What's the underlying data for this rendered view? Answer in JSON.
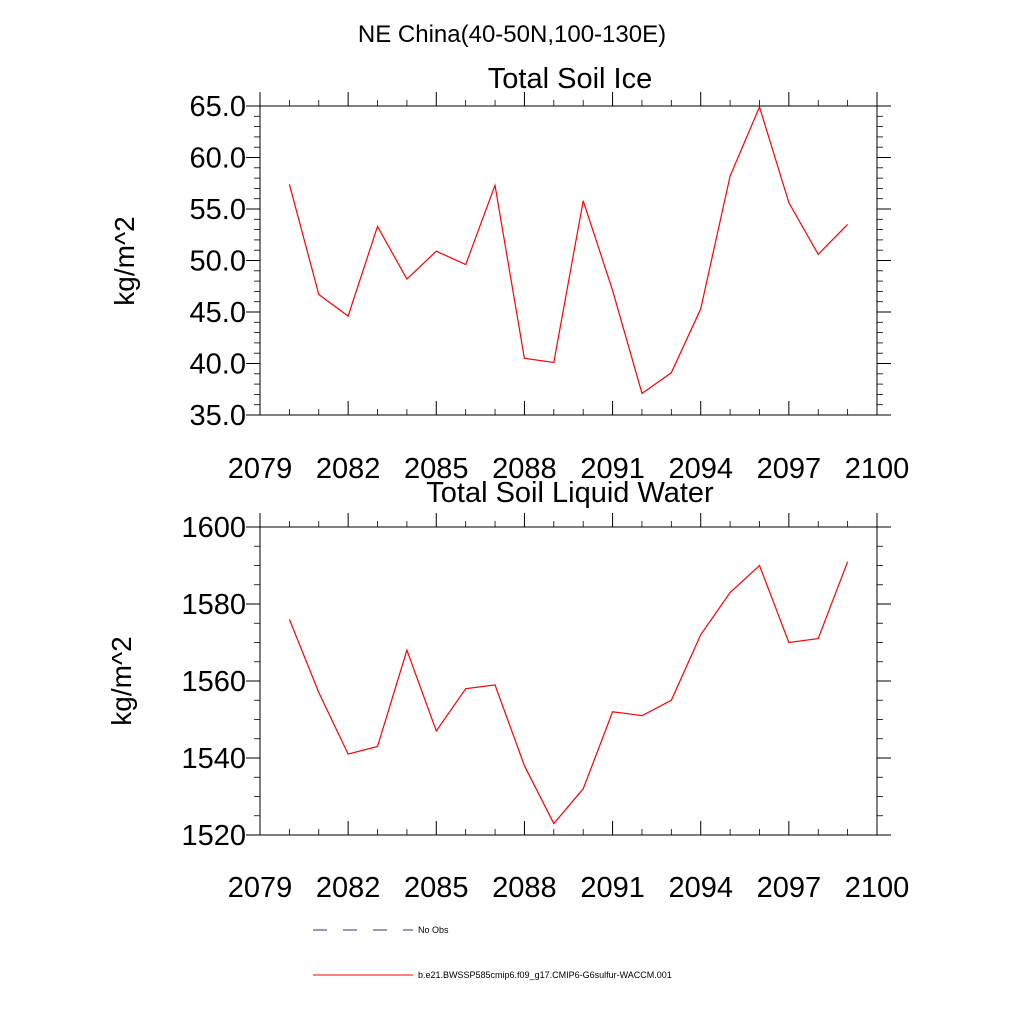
{
  "figure": {
    "suptitle": "NE China(40-50N,100-130E)"
  },
  "chart_data": [
    {
      "type": "line",
      "title": "Total Soil Ice",
      "xlabel": "",
      "ylabel": "kg/m^2",
      "xlim": [
        2079,
        2100
      ],
      "ylim": [
        35.0,
        65.0
      ],
      "x_ticks": [
        "2079",
        "2082",
        "2085",
        "2088",
        "2091",
        "2094",
        "2097",
        "2100"
      ],
      "y_ticks": [
        "35.0",
        "40.0",
        "45.0",
        "50.0",
        "55.0",
        "60.0",
        "65.0"
      ],
      "grid": false,
      "series": [
        {
          "name": "b.e21.BWSSP585cmip6.f09_g17.CMIP6-G6sulfur-WACCM.001",
          "color": "#ff0000",
          "x": [
            2080,
            2081,
            2082,
            2083,
            2084,
            2085,
            2086,
            2087,
            2088,
            2089,
            2090,
            2091,
            2092,
            2093,
            2094,
            2095,
            2096,
            2097,
            2098,
            2099
          ],
          "y": [
            57.4,
            46.7,
            44.6,
            53.3,
            48.2,
            50.9,
            49.6,
            57.3,
            40.5,
            40.1,
            55.8,
            47.1,
            37.1,
            39.1,
            45.3,
            58.2,
            64.9,
            55.6,
            50.6,
            53.5
          ]
        }
      ]
    },
    {
      "type": "line",
      "title": "Total Soil Liquid Water",
      "xlabel": "",
      "ylabel": "kg/m^2",
      "xlim": [
        2079,
        2100
      ],
      "ylim": [
        1520,
        1600
      ],
      "x_ticks": [
        "2079",
        "2082",
        "2085",
        "2088",
        "2091",
        "2094",
        "2097",
        "2100"
      ],
      "y_ticks": [
        "1520",
        "1540",
        "1560",
        "1580",
        "1600"
      ],
      "grid": false,
      "series": [
        {
          "name": "b.e21.BWSSP585cmip6.f09_g17.CMIP6-G6sulfur-WACCM.001",
          "color": "#ff0000",
          "x": [
            2080,
            2081,
            2082,
            2083,
            2084,
            2085,
            2086,
            2087,
            2088,
            2089,
            2090,
            2091,
            2092,
            2093,
            2094,
            2095,
            2096,
            2097,
            2098,
            2099
          ],
          "y": [
            1576,
            1557,
            1541,
            1543,
            1568,
            1547,
            1558,
            1559,
            1538,
            1523,
            1532,
            1552,
            1551,
            1555,
            1572,
            1583,
            1590,
            1570,
            1571,
            1591
          ]
        }
      ]
    }
  ],
  "legend": {
    "placement": "bottom",
    "entries": [
      {
        "label": "No Obs",
        "style": "dashed",
        "color": "#33336e"
      },
      {
        "label": "b.e21.BWSSP585cmip6.f09_g17.CMIP6-G6sulfur-WACCM.001",
        "style": "solid",
        "color": "#ff0000"
      }
    ]
  }
}
